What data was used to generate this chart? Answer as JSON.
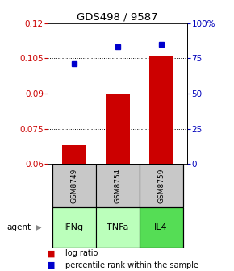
{
  "title": "GDS498 / 9587",
  "categories": [
    "IFNg",
    "TNFa",
    "IL4"
  ],
  "gsm_labels": [
    "GSM8749",
    "GSM8754",
    "GSM8759"
  ],
  "log_ratio": [
    0.068,
    0.09,
    0.106
  ],
  "percentile_rank": [
    71,
    83,
    85
  ],
  "ylim_left": [
    0.06,
    0.12
  ],
  "ylim_right": [
    0,
    100
  ],
  "yticks_left": [
    0.06,
    0.075,
    0.09,
    0.105,
    0.12
  ],
  "yticks_right": [
    0,
    25,
    50,
    75,
    100
  ],
  "ytick_labels_left": [
    "0.06",
    "0.075",
    "0.09",
    "0.105",
    "0.12"
  ],
  "ytick_labels_right": [
    "0",
    "25",
    "50",
    "75",
    "100%"
  ],
  "bar_color": "#cc0000",
  "dot_color": "#0000cc",
  "gsm_bg": "#c8c8c8",
  "agent_colors": [
    "#bbffbb",
    "#bbffbb",
    "#55dd55"
  ],
  "legend_items": [
    "log ratio",
    "percentile rank within the sample"
  ]
}
